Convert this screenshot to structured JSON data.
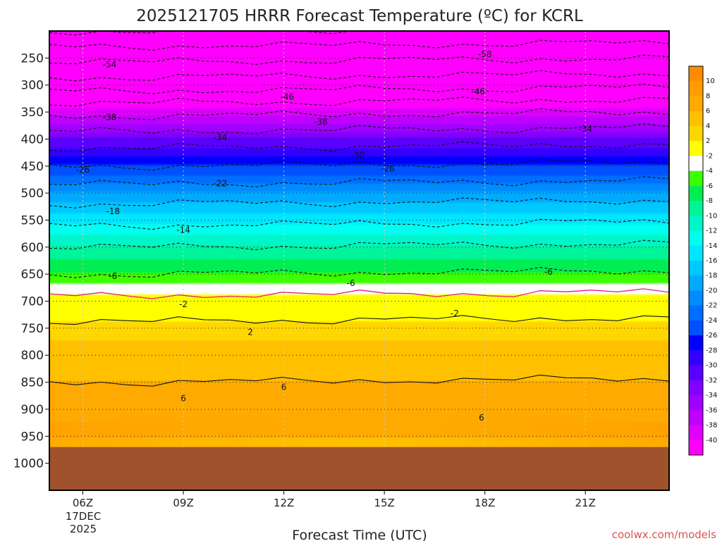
{
  "chart_data": {
    "type": "heatmap",
    "title": "2025121705 HRRR Forecast Temperature (ºC) for KCRL",
    "xlabel": "Forecast Time (UTC)",
    "ylabel": "",
    "credit": "coolwx.com/models",
    "x_hours": [
      5,
      23.5
    ],
    "y_range_hpa": [
      200,
      1050
    ],
    "x_ticks": [
      {
        "hour": 6,
        "label": "06Z"
      },
      {
        "hour": 9,
        "label": "09Z"
      },
      {
        "hour": 12,
        "label": "12Z"
      },
      {
        "hour": 15,
        "label": "15Z"
      },
      {
        "hour": 18,
        "label": "18Z"
      },
      {
        "hour": 21,
        "label": "21Z"
      }
    ],
    "date_label": [
      "17DEC",
      "2025"
    ],
    "y_ticks": [
      250,
      300,
      350,
      400,
      450,
      500,
      550,
      600,
      650,
      700,
      750,
      800,
      850,
      900,
      950,
      1000
    ],
    "grid": true,
    "surface_pressure_hpa": 970,
    "surface_color": "#a0522d",
    "color_levels": [
      10,
      8,
      6,
      4,
      2,
      -2,
      -4,
      -6,
      -8,
      -10,
      -12,
      -14,
      -16,
      -18,
      -20,
      -22,
      -24,
      -26,
      -28,
      -30,
      -32,
      -34,
      -36,
      -38,
      -40
    ],
    "colorbar_colors": [
      "#ff8c00",
      "#ff9c00",
      "#ffaa00",
      "#ffc000",
      "#ffd700",
      "#ffff00",
      "#ffffff",
      "#3cff00",
      "#00ee52",
      "#00f59a",
      "#00f5c8",
      "#00fff0",
      "#00e6ff",
      "#00c8ff",
      "#00aaff",
      "#008cff",
      "#006eff",
      "#0050ff",
      "#0000ff",
      "#3200ff",
      "#5a00ff",
      "#8200ff",
      "#a000ff",
      "#be00ff",
      "#e000ff",
      "#ff00ff"
    ],
    "isotherm_profile": {
      "pressure_hpa": [
        200,
        250,
        300,
        350,
        400,
        450,
        500,
        550,
        600,
        650,
        700,
        725,
        750,
        800,
        850,
        900,
        950,
        970
      ],
      "temperature_c": [
        -62,
        -55,
        -48,
        -39,
        -32,
        -26,
        -20,
        -15,
        -10,
        -6,
        -1,
        1,
        3,
        5,
        6,
        7,
        6,
        5
      ]
    },
    "contour_labels": [
      {
        "value": "-54",
        "hour": 6.8,
        "hpa": 262
      },
      {
        "value": "-58",
        "hour": 18.0,
        "hpa": 243
      },
      {
        "value": "-46",
        "hour": 12.1,
        "hpa": 322
      },
      {
        "value": "-46",
        "hour": 17.8,
        "hpa": 312
      },
      {
        "value": "-38",
        "hour": 6.8,
        "hpa": 360
      },
      {
        "value": "-38",
        "hour": 13.1,
        "hpa": 368
      },
      {
        "value": "-34",
        "hour": 10.1,
        "hpa": 397
      },
      {
        "value": "-34",
        "hour": 21.0,
        "hpa": 381
      },
      {
        "value": "-30",
        "hour": 14.2,
        "hpa": 430
      },
      {
        "value": "-26",
        "hour": 6.0,
        "hpa": 457
      },
      {
        "value": "-26",
        "hour": 15.1,
        "hpa": 455
      },
      {
        "value": "-22",
        "hour": 10.1,
        "hpa": 482
      },
      {
        "value": "-18",
        "hour": 6.9,
        "hpa": 534
      },
      {
        "value": "-14",
        "hour": 9.0,
        "hpa": 568
      },
      {
        "value": "-6",
        "hour": 6.9,
        "hpa": 654
      },
      {
        "value": "-6",
        "hour": 14.0,
        "hpa": 667
      },
      {
        "value": "-6",
        "hour": 19.9,
        "hpa": 646
      },
      {
        "value": "-2",
        "hour": 9.0,
        "hpa": 706
      },
      {
        "value": "-2",
        "hour": 17.1,
        "hpa": 723
      },
      {
        "value": "2",
        "hour": 11.0,
        "hpa": 757
      },
      {
        "value": "6",
        "hour": 12.0,
        "hpa": 859
      },
      {
        "value": "6",
        "hour": 9.0,
        "hpa": 880
      },
      {
        "value": "6",
        "hour": 17.9,
        "hpa": 916
      }
    ]
  }
}
